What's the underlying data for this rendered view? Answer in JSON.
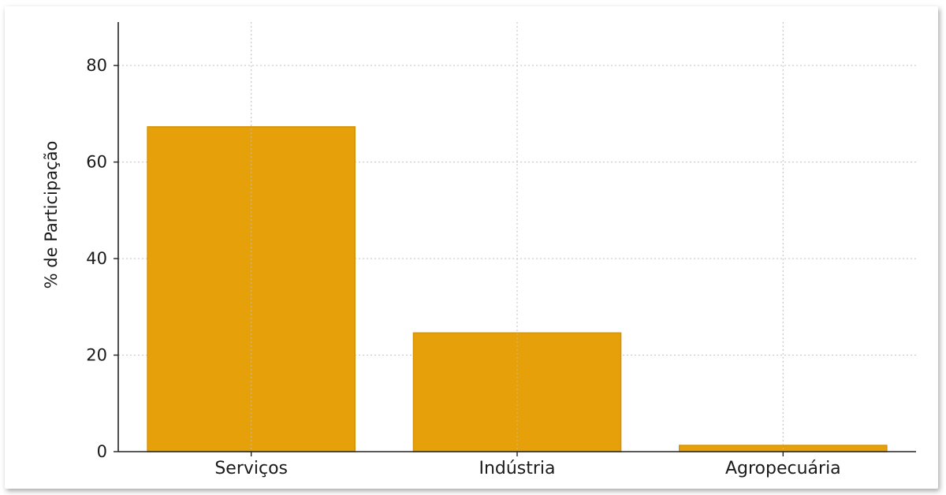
{
  "chart_data": {
    "type": "bar",
    "categories": [
      "Serviços",
      "Indústria",
      "Agropecuária"
    ],
    "values": [
      67.3,
      24.6,
      1.3
    ],
    "title": "",
    "xlabel": "",
    "ylabel": "% de Participação",
    "ylim": [
      0,
      89
    ],
    "yticks": [
      0,
      20,
      40,
      60,
      80
    ],
    "grid": true,
    "bar_color": "#E6A10A",
    "bar_edge_color": "#D4920A"
  }
}
